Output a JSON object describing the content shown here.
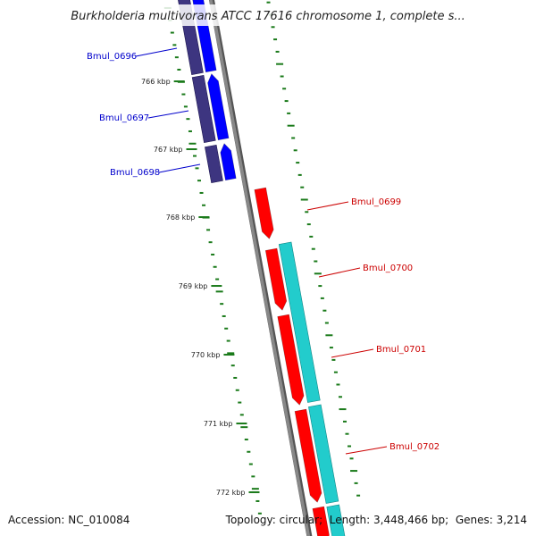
{
  "title": "Burkholderia multivorans ATCC 17616 chromosome 1, complete s...",
  "ticks": [
    "766 kbp",
    "767 kbp",
    "768 kbp",
    "769 kbp",
    "770 kbp",
    "771 kbp",
    "772 kbp"
  ],
  "genes": [
    {
      "name": "Bmul_0696",
      "strand": "reverse",
      "color": "#0000cc"
    },
    {
      "name": "Bmul_0697",
      "strand": "reverse",
      "color": "#0000cc"
    },
    {
      "name": "Bmul_0698",
      "strand": "reverse",
      "color": "#0000cc"
    },
    {
      "name": "Bmul_0699",
      "strand": "forward",
      "color": "#cc0000"
    },
    {
      "name": "Bmul_0700",
      "strand": "forward",
      "color": "#cc0000"
    },
    {
      "name": "Bmul_0701",
      "strand": "forward",
      "color": "#cc0000"
    },
    {
      "name": "Bmul_0702",
      "strand": "forward",
      "color": "#cc0000"
    }
  ],
  "colors": {
    "reverse_gene": "#0000ff",
    "reverse_cds": "#3d3580",
    "forward_gene": "#ff0000",
    "forward_cds": "#22cccc",
    "backbone": "#888888",
    "ticks": "#1a7a1a"
  },
  "footer": {
    "accession_label": "Accession:",
    "accession": "NC_010084",
    "topology_label": "Topology:",
    "topology": "circular",
    "length_label": "Length:",
    "length": "3,448,466 bp",
    "genes_label": "Genes:",
    "genes": "3,214"
  }
}
